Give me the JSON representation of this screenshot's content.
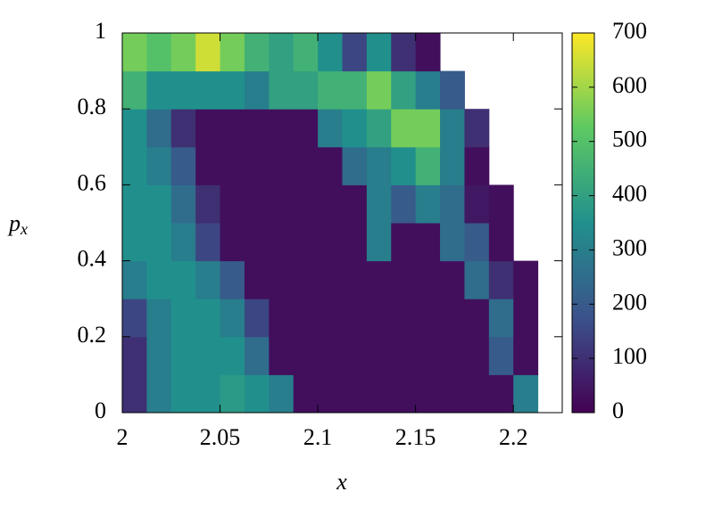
{
  "chart_data": {
    "type": "heatmap",
    "xlabel": "x",
    "ylabel": "p_x",
    "xlim": [
      2,
      2.225
    ],
    "ylim": [
      0,
      1
    ],
    "xticks": [
      2,
      2.05,
      2.1,
      2.15,
      2.2
    ],
    "yticks": [
      0,
      0.2,
      0.4,
      0.6,
      0.8,
      1
    ],
    "colormap": "viridis",
    "clim": [
      0,
      700
    ],
    "cticks": [
      0,
      100,
      200,
      300,
      400,
      500,
      600,
      700
    ],
    "z": [
      [
        100,
        300,
        350,
        350,
        380,
        350,
        300,
        30,
        30,
        30,
        30,
        30,
        30,
        30,
        30,
        30,
        300,
        null
      ],
      [
        100,
        300,
        350,
        350,
        350,
        250,
        30,
        30,
        30,
        30,
        30,
        30,
        30,
        30,
        30,
        200,
        30,
        null
      ],
      [
        150,
        300,
        350,
        350,
        300,
        150,
        30,
        30,
        30,
        30,
        30,
        30,
        30,
        30,
        30,
        250,
        30,
        null
      ],
      [
        300,
        350,
        350,
        300,
        200,
        30,
        30,
        30,
        30,
        30,
        30,
        30,
        30,
        30,
        250,
        100,
        30,
        null
      ],
      [
        350,
        350,
        300,
        150,
        30,
        30,
        30,
        30,
        30,
        30,
        300,
        30,
        30,
        250,
        200,
        30,
        null,
        null
      ],
      [
        350,
        350,
        250,
        100,
        30,
        30,
        30,
        30,
        30,
        30,
        300,
        200,
        300,
        250,
        50,
        30,
        null,
        null
      ],
      [
        350,
        300,
        200,
        30,
        30,
        30,
        30,
        30,
        30,
        250,
        300,
        350,
        450,
        300,
        30,
        null,
        null,
        null
      ],
      [
        350,
        250,
        100,
        30,
        30,
        30,
        30,
        30,
        300,
        350,
        400,
        550,
        550,
        300,
        100,
        null,
        null,
        null
      ],
      [
        450,
        350,
        350,
        350,
        350,
        300,
        400,
        400,
        450,
        450,
        550,
        400,
        300,
        200,
        null,
        null,
        null,
        null
      ],
      [
        550,
        500,
        550,
        650,
        550,
        450,
        400,
        450,
        350,
        150,
        350,
        100,
        30,
        null,
        null,
        null,
        null,
        null
      ]
    ]
  }
}
